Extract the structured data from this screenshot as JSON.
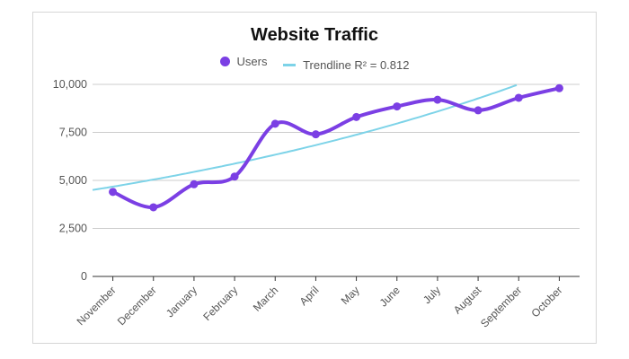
{
  "chart_data": {
    "type": "line",
    "title": "Website Traffic",
    "xlabel": "",
    "ylabel": "",
    "ylim": [
      0,
      10000
    ],
    "yticks": [
      0,
      2500,
      5000,
      7500,
      10000
    ],
    "ytick_labels": [
      "0",
      "2,500",
      "5,000",
      "7,500",
      "10,000"
    ],
    "grid": true,
    "legend_position": "top",
    "categories": [
      "November",
      "December",
      "January",
      "February",
      "March",
      "April",
      "May",
      "June",
      "July",
      "August",
      "September",
      "October"
    ],
    "series": [
      {
        "name": "Users",
        "color": "#7b3fe4",
        "values": [
          4400,
          3600,
          4800,
          5200,
          7950,
          7400,
          8300,
          8850,
          9200,
          8650,
          9300,
          9800
        ]
      }
    ],
    "trendline": {
      "label": "Trendline R² = 0.812",
      "color": "#7dd3e8",
      "values_at_edges": {
        "left": 4500,
        "right_at_september": 10000
      }
    }
  }
}
